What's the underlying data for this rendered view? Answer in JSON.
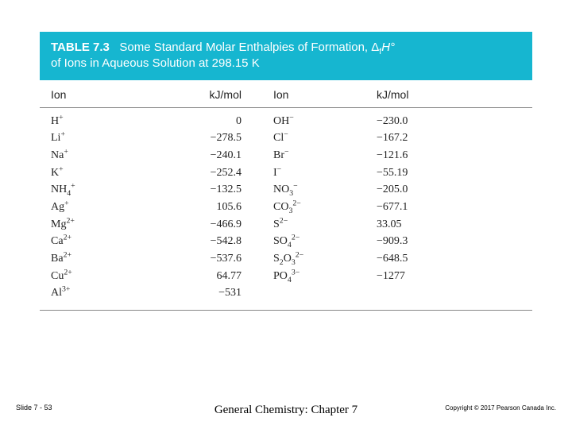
{
  "header": {
    "prefix": "TABLE 7.3",
    "title_part1": "Some Standard Molar Enthalpies of Formation, Δ",
    "title_sub": "f",
    "title_part2": "H°",
    "title_line2": "of Ions in Aqueous Solution at 298.15 K",
    "bg_color": "#16b6d0",
    "text_color": "#ffffff",
    "fontsize": 15
  },
  "columns": {
    "ion_label": "Ion",
    "val_label": "kJ/mol",
    "header_fontsize": 14,
    "border_color": "#888888"
  },
  "rows": [
    {
      "ion1": "H<sup>+</sup>",
      "val1": "0",
      "ion2": "OH<sup>−</sup>",
      "val2": "−230.0"
    },
    {
      "ion1": "Li<sup>+</sup>",
      "val1": "−278.5",
      "ion2": "Cl<sup>−</sup>",
      "val2": "−167.2"
    },
    {
      "ion1": "Na<sup>+</sup>",
      "val1": "−240.1",
      "ion2": "Br<sup>−</sup>",
      "val2": "−121.6"
    },
    {
      "ion1": "K<sup>+</sup>",
      "val1": "−252.4",
      "ion2": "I<sup>−</sup>",
      "val2": "−55.19"
    },
    {
      "ion1": "NH<sub>4</sub><sup>+</sup>",
      "val1": "−132.5",
      "ion2": "NO<sub>3</sub><sup>−</sup>",
      "val2": "−205.0"
    },
    {
      "ion1": "Ag<sup>+</sup>",
      "val1": "105.6",
      "ion2": "CO<sub>3</sub><sup>2−</sup>",
      "val2": "−677.1"
    },
    {
      "ion1": "Mg<sup>2+</sup>",
      "val1": "−466.9",
      "ion2": "S<sup>2−</sup>",
      "val2": "33.05"
    },
    {
      "ion1": "Ca<sup>2+</sup>",
      "val1": "−542.8",
      "ion2": "SO<sub>4</sub><sup>2−</sup>",
      "val2": "−909.3"
    },
    {
      "ion1": "Ba<sup>2+</sup>",
      "val1": "−537.6",
      "ion2": "S<sub>2</sub>O<sub>3</sub><sup>2−</sup>",
      "val2": "−648.5"
    },
    {
      "ion1": "Cu<sup>2+</sup>",
      "val1": "64.77",
      "ion2": "PO<sub>4</sub><sup>3−</sup>",
      "val2": "−1277"
    },
    {
      "ion1": "Al<sup>3+</sup>",
      "val1": "−531",
      "ion2": "",
      "val2": ""
    }
  ],
  "body_style": {
    "font_family": "Georgia, 'Times New Roman', serif",
    "fontsize": 14,
    "text_color": "#222222",
    "background_color": "#ffffff"
  },
  "footer": {
    "left": "Slide 7 - 53",
    "center": "General Chemistry: Chapter 7",
    "right": "Copyright © 2017 Pearson Canada Inc.",
    "left_fontsize": 9,
    "center_fontsize": 15,
    "right_fontsize": 8
  }
}
